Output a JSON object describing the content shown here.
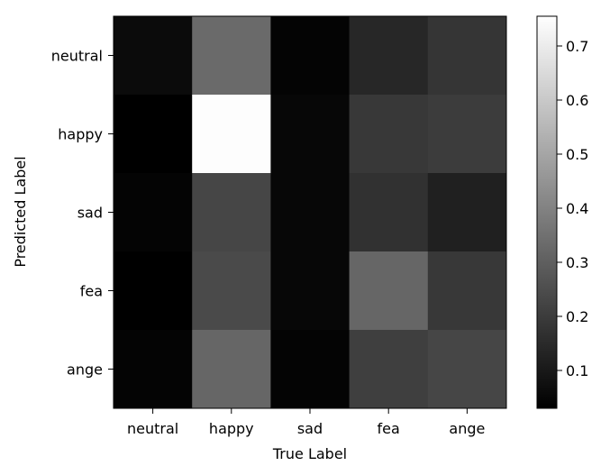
{
  "chart_data": {
    "type": "heatmap",
    "title": "",
    "xlabel": "True Label",
    "ylabel": "Predicted Label",
    "x_categories": [
      "neutral",
      "happy",
      "sad",
      "fea",
      "ange"
    ],
    "y_categories": [
      "neutral",
      "happy",
      "sad",
      "fea",
      "ange"
    ],
    "values": [
      [
        0.06,
        0.33,
        0.04,
        0.14,
        0.18
      ],
      [
        0.03,
        0.75,
        0.05,
        0.19,
        0.2
      ],
      [
        0.04,
        0.23,
        0.05,
        0.17,
        0.12
      ],
      [
        0.03,
        0.24,
        0.05,
        0.32,
        0.19
      ],
      [
        0.04,
        0.32,
        0.04,
        0.21,
        0.23
      ]
    ],
    "colormap": "gray",
    "vmin": 0.03,
    "vmax": 0.755,
    "colorbar": {
      "ticks": [
        0.1,
        0.2,
        0.3,
        0.4,
        0.5,
        0.6,
        0.7
      ],
      "tick_labels": [
        "0.1",
        "0.2",
        "0.3",
        "0.4",
        "0.5",
        "0.6",
        "0.7"
      ]
    }
  }
}
